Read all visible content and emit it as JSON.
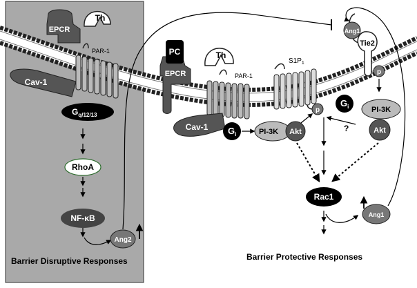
{
  "left_panel": {
    "epcr": "EPCR",
    "th": "Th",
    "par1": "PAR-1",
    "cav1": "Cav-1",
    "gq": "G",
    "gq_sub": "q/12/13",
    "rhoa": "RhoA",
    "nfkb": "NF-κB",
    "ang2": "Ang2",
    "caption": "Barrier Disruptive Responses"
  },
  "right_panel": {
    "pc": "PC",
    "epcr": "EPCR",
    "th": "Th",
    "par1": "PAR-1",
    "s1p1": "S1P",
    "s1p1_sub": "1",
    "cav1": "Cav-1",
    "gi_left": "G",
    "gi_left_sub": "i",
    "gi_right": "G",
    "gi_right_sub": "i",
    "pi3k_left": "PI-3K",
    "akt_left": "Akt",
    "p_center": "p",
    "question": "?",
    "ang1_top": "Ang1",
    "tie2": "Tie2",
    "p_tie2": "p",
    "pi3k_right": "PI-3K",
    "akt_right": "Akt",
    "rac1": "Rac1",
    "ang1_bottom": "Ang1",
    "caption": "Barrier Protective Responses"
  }
}
